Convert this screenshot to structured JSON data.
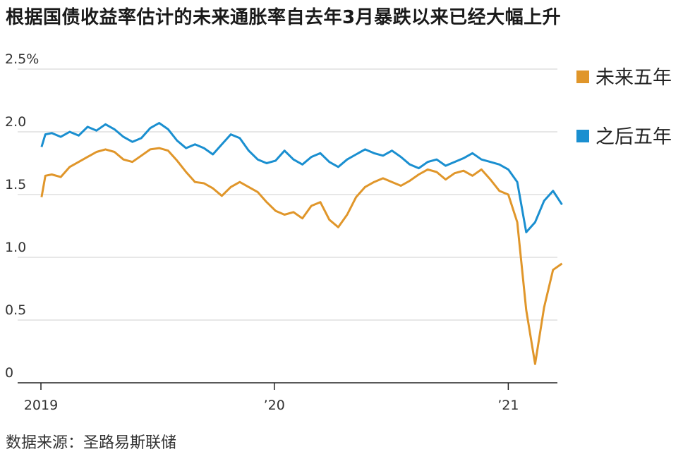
{
  "title": "根据国债收益率估计的未来通胀率自去年3月暴跌以来已经大幅上升",
  "source": "数据来源：圣路易斯联储",
  "colors": {
    "series_1": "#e0962a",
    "series_2": "#1a8fd0"
  },
  "chart_data": {
    "type": "line",
    "title": "根据国债收益率估计的未来通胀率自去年3月暴跌以来已经大幅上升",
    "xlabel": "",
    "ylabel": "",
    "ylim": [
      0,
      2.5
    ],
    "xlim": [
      "2019-01-01",
      "2021-03-10"
    ],
    "y_ticks": [
      {
        "value": 2.5,
        "label": "2.5%"
      },
      {
        "value": 2.0,
        "label": "2.0"
      },
      {
        "value": 1.5,
        "label": "1.5"
      },
      {
        "value": 1.0,
        "label": "1.0"
      },
      {
        "value": 0.5,
        "label": "0.5"
      },
      {
        "value": 0.0,
        "label": "0"
      }
    ],
    "x_ticks": [
      {
        "value": "2019-01-01",
        "label": "2019"
      },
      {
        "value": "2020-01-01",
        "label": "’20"
      },
      {
        "value": "2021-01-01",
        "label": "’21"
      }
    ],
    "grid": true,
    "legend": "right",
    "series": [
      {
        "name": "未来五年",
        "color": "#e0962a",
        "points": [
          [
            "2019-01-02",
            1.48
          ],
          [
            "2019-01-08",
            1.65
          ],
          [
            "2019-01-18",
            1.66
          ],
          [
            "2019-02-01",
            1.64
          ],
          [
            "2019-02-15",
            1.72
          ],
          [
            "2019-03-01",
            1.76
          ],
          [
            "2019-03-15",
            1.8
          ],
          [
            "2019-03-29",
            1.84
          ],
          [
            "2019-04-12",
            1.86
          ],
          [
            "2019-04-26",
            1.84
          ],
          [
            "2019-05-10",
            1.78
          ],
          [
            "2019-05-24",
            1.76
          ],
          [
            "2019-06-07",
            1.81
          ],
          [
            "2019-06-21",
            1.86
          ],
          [
            "2019-07-05",
            1.87
          ],
          [
            "2019-07-19",
            1.85
          ],
          [
            "2019-08-02",
            1.77
          ],
          [
            "2019-08-16",
            1.68
          ],
          [
            "2019-08-30",
            1.6
          ],
          [
            "2019-09-13",
            1.59
          ],
          [
            "2019-09-27",
            1.55
          ],
          [
            "2019-10-11",
            1.49
          ],
          [
            "2019-10-25",
            1.56
          ],
          [
            "2019-11-08",
            1.6
          ],
          [
            "2019-11-22",
            1.56
          ],
          [
            "2019-12-06",
            1.52
          ],
          [
            "2019-12-20",
            1.44
          ],
          [
            "2020-01-03",
            1.37
          ],
          [
            "2020-01-17",
            1.34
          ],
          [
            "2020-01-31",
            1.36
          ],
          [
            "2020-02-14",
            1.31
          ],
          [
            "2020-02-28",
            1.41
          ],
          [
            "2020-03-13",
            1.44
          ],
          [
            "2020-03-27",
            1.3
          ],
          [
            "2020-04-10",
            1.24
          ],
          [
            "2020-04-24",
            1.34
          ],
          [
            "2020-05-08",
            1.48
          ],
          [
            "2020-05-22",
            1.56
          ],
          [
            "2020-06-05",
            1.6
          ],
          [
            "2020-06-19",
            1.63
          ],
          [
            "2020-07-03",
            1.6
          ],
          [
            "2020-07-17",
            1.57
          ],
          [
            "2020-07-31",
            1.61
          ],
          [
            "2020-08-14",
            1.66
          ],
          [
            "2020-08-28",
            1.7
          ],
          [
            "2020-09-11",
            1.68
          ],
          [
            "2020-09-25",
            1.62
          ],
          [
            "2020-10-09",
            1.67
          ],
          [
            "2020-10-23",
            1.69
          ],
          [
            "2020-11-06",
            1.65
          ],
          [
            "2020-11-20",
            1.7
          ],
          [
            "2020-12-04",
            1.62
          ],
          [
            "2020-12-18",
            1.53
          ],
          [
            "2021-01-01",
            1.5
          ],
          [
            "2021-01-15",
            1.28
          ],
          [
            "2021-01-29",
            0.58
          ],
          [
            "2021-02-12",
            0.15
          ],
          [
            "2021-02-26",
            0.6
          ],
          [
            "2021-03-12",
            0.9
          ],
          [
            "2021-03-26",
            0.95
          ]
        ]
      },
      {
        "name": "之后五年",
        "color": "#1a8fd0",
        "points": [
          [
            "2019-01-02",
            1.88
          ],
          [
            "2019-01-08",
            1.98
          ],
          [
            "2019-01-18",
            1.99
          ],
          [
            "2019-02-01",
            1.96
          ],
          [
            "2019-02-15",
            2.0
          ],
          [
            "2019-03-01",
            1.97
          ],
          [
            "2019-03-15",
            2.04
          ],
          [
            "2019-03-29",
            2.01
          ],
          [
            "2019-04-12",
            2.06
          ],
          [
            "2019-04-26",
            2.02
          ],
          [
            "2019-05-10",
            1.96
          ],
          [
            "2019-05-24",
            1.92
          ],
          [
            "2019-06-07",
            1.95
          ],
          [
            "2019-06-21",
            2.03
          ],
          [
            "2019-07-05",
            2.07
          ],
          [
            "2019-07-19",
            2.02
          ],
          [
            "2019-08-02",
            1.93
          ],
          [
            "2019-08-16",
            1.87
          ],
          [
            "2019-08-30",
            1.9
          ],
          [
            "2019-09-13",
            1.87
          ],
          [
            "2019-09-27",
            1.82
          ],
          [
            "2019-10-11",
            1.9
          ],
          [
            "2019-10-25",
            1.98
          ],
          [
            "2019-11-08",
            1.95
          ],
          [
            "2019-11-22",
            1.85
          ],
          [
            "2019-12-06",
            1.78
          ],
          [
            "2019-12-20",
            1.75
          ],
          [
            "2020-01-03",
            1.77
          ],
          [
            "2020-01-17",
            1.85
          ],
          [
            "2020-01-31",
            1.78
          ],
          [
            "2020-02-14",
            1.74
          ],
          [
            "2020-02-28",
            1.8
          ],
          [
            "2020-03-13",
            1.83
          ],
          [
            "2020-03-27",
            1.76
          ],
          [
            "2020-04-10",
            1.72
          ],
          [
            "2020-04-24",
            1.78
          ],
          [
            "2020-05-08",
            1.82
          ],
          [
            "2020-05-22",
            1.86
          ],
          [
            "2020-06-05",
            1.83
          ],
          [
            "2020-06-19",
            1.81
          ],
          [
            "2020-07-03",
            1.85
          ],
          [
            "2020-07-17",
            1.8
          ],
          [
            "2020-07-31",
            1.74
          ],
          [
            "2020-08-14",
            1.71
          ],
          [
            "2020-08-28",
            1.76
          ],
          [
            "2020-09-11",
            1.78
          ],
          [
            "2020-09-25",
            1.73
          ],
          [
            "2020-10-09",
            1.76
          ],
          [
            "2020-10-23",
            1.79
          ],
          [
            "2020-11-06",
            1.83
          ],
          [
            "2020-11-20",
            1.78
          ],
          [
            "2020-12-04",
            1.76
          ],
          [
            "2020-12-18",
            1.74
          ],
          [
            "2021-01-01",
            1.7
          ],
          [
            "2021-01-15",
            1.6
          ],
          [
            "2021-01-29",
            1.2
          ],
          [
            "2021-02-12",
            1.28
          ],
          [
            "2021-02-26",
            1.45
          ],
          [
            "2021-03-12",
            1.53
          ],
          [
            "2021-03-26",
            1.42
          ]
        ]
      }
    ]
  }
}
